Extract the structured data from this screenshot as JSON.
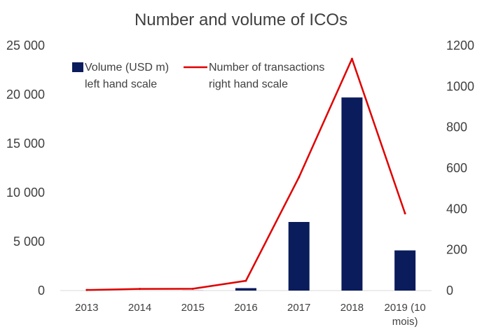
{
  "chart_data": {
    "type": "bar",
    "title": "Number and volume of ICOs",
    "categories": [
      "2013",
      "2014",
      "2015",
      "2016",
      "2017",
      "2018",
      "2019 (10 mois)"
    ],
    "series": [
      {
        "name": "Volume (USD m)",
        "name_line2": "left hand scale",
        "type": "bar",
        "axis": "left",
        "color": "#0b1c5c",
        "values": [
          0,
          0,
          10,
          250,
          7000,
          19700,
          4100
        ]
      },
      {
        "name": "Number of transactions",
        "name_line2": "right hand scale",
        "type": "line",
        "axis": "right",
        "color": "#e00000",
        "values": [
          3,
          8,
          9,
          48,
          555,
          1135,
          378
        ]
      }
    ],
    "y_left": {
      "ylim": [
        0,
        25000
      ],
      "ticks": [
        0,
        5000,
        10000,
        15000,
        20000,
        25000
      ],
      "tick_labels": [
        "0",
        "5 000",
        "10 000",
        "15 000",
        "20 000",
        "25 000"
      ]
    },
    "y_right": {
      "ylim": [
        0,
        1200
      ],
      "ticks": [
        0,
        200,
        400,
        600,
        800,
        1000,
        1200
      ],
      "tick_labels": [
        "0",
        "200",
        "400",
        "600",
        "800",
        "1000",
        "1200"
      ]
    },
    "grid": false,
    "legend_position": "top-left"
  }
}
